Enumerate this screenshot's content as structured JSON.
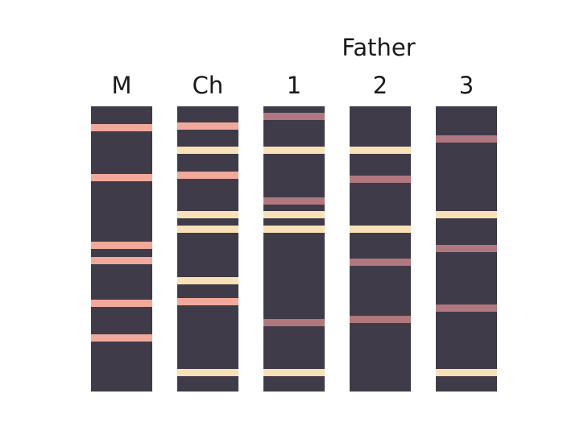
{
  "group_label": "Father",
  "colors": {
    "lane": "#3f3b49",
    "mother_band": "#f1a99b",
    "shared_band": "#f8e1b7",
    "father_only_band": "#b1777e",
    "text": "#1a1a1a"
  },
  "lanes": [
    {
      "id": "M",
      "label": "M",
      "bands": [
        {
          "pos": 0.074,
          "type": "mother_band"
        },
        {
          "pos": 0.249,
          "type": "mother_band"
        },
        {
          "pos": 0.487,
          "type": "mother_band"
        },
        {
          "pos": 0.54,
          "type": "mother_band"
        },
        {
          "pos": 0.692,
          "type": "mother_band"
        },
        {
          "pos": 0.813,
          "type": "mother_band"
        }
      ]
    },
    {
      "id": "Ch",
      "label": "Ch",
      "bands": [
        {
          "pos": 0.068,
          "type": "mother_band"
        },
        {
          "pos": 0.153,
          "type": "shared_band"
        },
        {
          "pos": 0.241,
          "type": "mother_band"
        },
        {
          "pos": 0.38,
          "type": "shared_band"
        },
        {
          "pos": 0.43,
          "type": "shared_band"
        },
        {
          "pos": 0.612,
          "type": "shared_band"
        },
        {
          "pos": 0.686,
          "type": "mother_band"
        },
        {
          "pos": 0.935,
          "type": "shared_band"
        }
      ]
    },
    {
      "id": "F1",
      "label": "1",
      "bands": [
        {
          "pos": 0.034,
          "type": "father_only_band"
        },
        {
          "pos": 0.153,
          "type": "shared_band"
        },
        {
          "pos": 0.332,
          "type": "father_only_band"
        },
        {
          "pos": 0.38,
          "type": "shared_band"
        },
        {
          "pos": 0.43,
          "type": "shared_band"
        },
        {
          "pos": 0.759,
          "type": "father_only_band"
        },
        {
          "pos": 0.935,
          "type": "shared_band"
        }
      ]
    },
    {
      "id": "F2",
      "label": "2",
      "bands": [
        {
          "pos": 0.153,
          "type": "shared_band"
        },
        {
          "pos": 0.255,
          "type": "father_only_band"
        },
        {
          "pos": 0.43,
          "type": "shared_band"
        },
        {
          "pos": 0.546,
          "type": "father_only_band"
        },
        {
          "pos": 0.748,
          "type": "father_only_band"
        }
      ]
    },
    {
      "id": "F3",
      "label": "3",
      "bands": [
        {
          "pos": 0.113,
          "type": "father_only_band"
        },
        {
          "pos": 0.38,
          "type": "shared_band"
        },
        {
          "pos": 0.499,
          "type": "father_only_band"
        },
        {
          "pos": 0.707,
          "type": "father_only_band"
        },
        {
          "pos": 0.935,
          "type": "shared_band"
        }
      ]
    }
  ]
}
